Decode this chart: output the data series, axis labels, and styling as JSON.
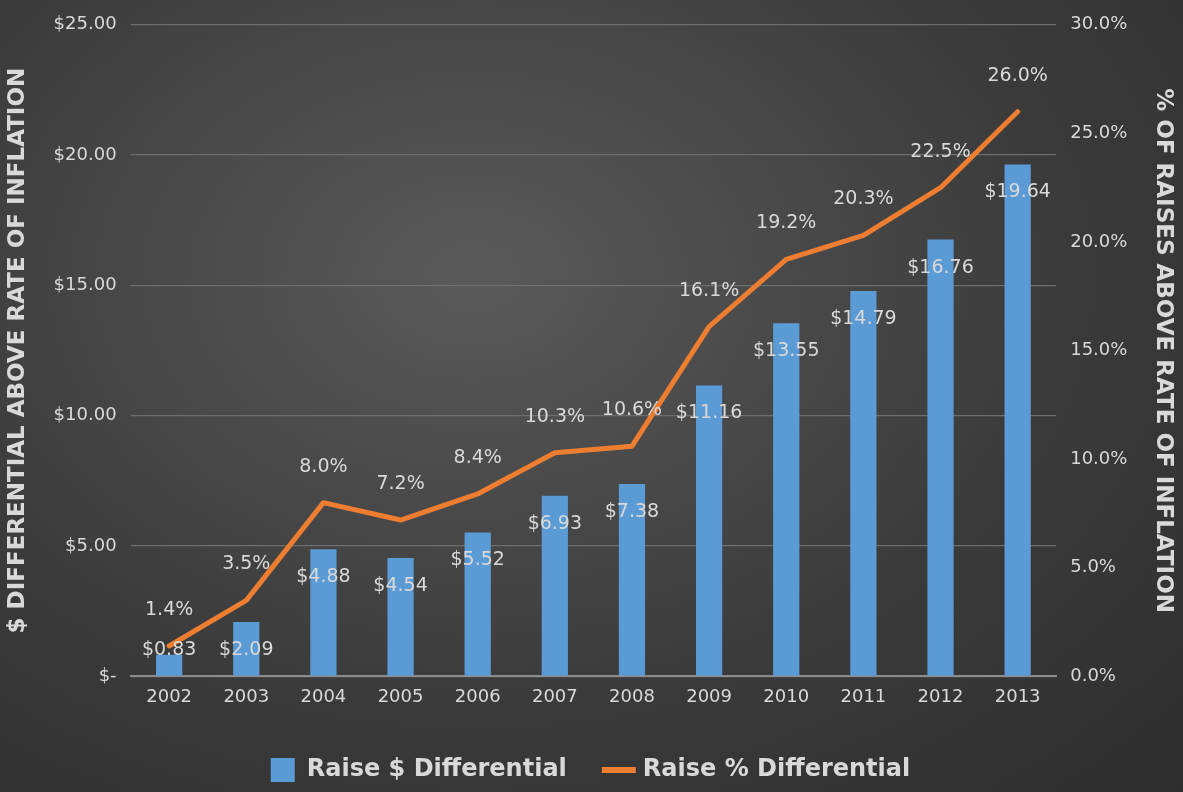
{
  "chart_data": {
    "type": "bar",
    "categories": [
      "2002",
      "2003",
      "2004",
      "2005",
      "2006",
      "2007",
      "2008",
      "2009",
      "2010",
      "2011",
      "2012",
      "2013"
    ],
    "series": [
      {
        "name": "Raise $ Differential",
        "color": "#5b9bd5",
        "values": [
          0.83,
          2.09,
          4.88,
          4.54,
          5.52,
          6.93,
          7.38,
          11.16,
          13.55,
          14.79,
          16.76,
          19.64
        ],
        "value_labels": [
          "$0.83",
          "$2.09",
          "$4.88",
          "$4.54",
          "$5.52",
          "$6.93",
          "$7.38",
          "$11.16",
          "$13.55",
          "$14.79",
          "$16.76",
          "$19.64"
        ]
      },
      {
        "name": "Raise % Differential",
        "type": "line",
        "axis": "y2",
        "color": "#ed7d31",
        "values": [
          1.4,
          3.5,
          8.0,
          7.2,
          8.4,
          10.3,
          10.6,
          16.1,
          19.2,
          20.3,
          22.5,
          26.0
        ],
        "value_labels": [
          "1.4%",
          "3.5%",
          "8.0%",
          "7.2%",
          "8.4%",
          "10.3%",
          "10.6%",
          "16.1%",
          "19.2%",
          "20.3%",
          "22.5%",
          "26.0%"
        ]
      }
    ],
    "ylabel": "$ DIFFERENTIAL ABOVE RATE OF INFLATION",
    "y2label": "% OF RAISES ABOVE RATE OF INFLATION",
    "ylim": [
      0,
      25
    ],
    "yticks": [
      {
        "value": 0,
        "label": "$-"
      },
      {
        "value": 5,
        "label": "$5.00"
      },
      {
        "value": 10,
        "label": "$10.00"
      },
      {
        "value": 15,
        "label": "$15.00"
      },
      {
        "value": 20,
        "label": "$20.00"
      },
      {
        "value": 25,
        "label": "$25.00"
      }
    ],
    "y2lim": [
      0,
      30
    ],
    "y2ticks": [
      {
        "value": 0,
        "label": "0.0%"
      },
      {
        "value": 5,
        "label": "5.0%"
      },
      {
        "value": 10,
        "label": "10.0%"
      },
      {
        "value": 15,
        "label": "15.0%"
      },
      {
        "value": 20,
        "label": "20.0%"
      },
      {
        "value": 25,
        "label": "25.0%"
      },
      {
        "value": 30,
        "label": "30.0%"
      }
    ],
    "grid": "y",
    "legend": "bottom",
    "marker": "none",
    "line_style": "solid"
  }
}
